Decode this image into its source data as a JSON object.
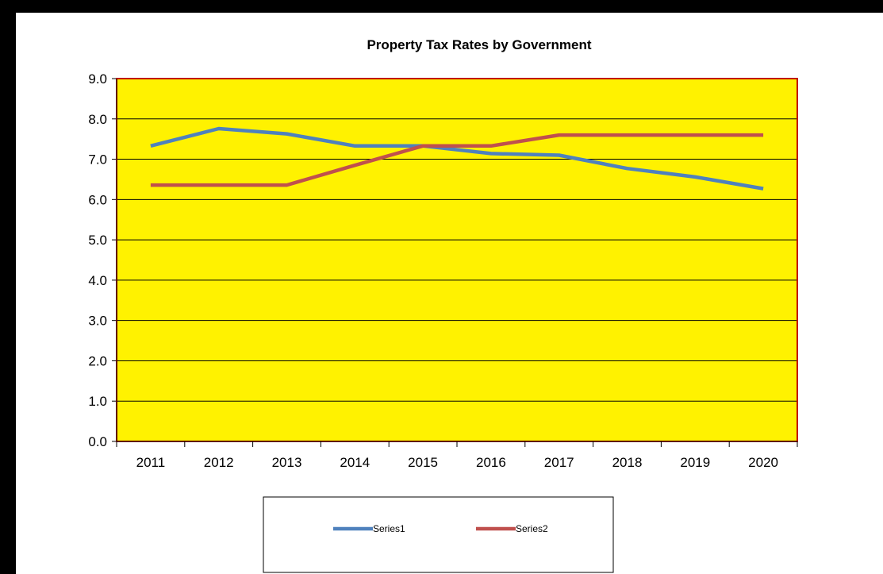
{
  "chart_data": {
    "type": "line",
    "title": "Property Tax Rates by Government",
    "xlabel": "",
    "ylabel": "",
    "categories": [
      "2011",
      "2012",
      "2013",
      "2014",
      "2015",
      "2016",
      "2017",
      "2018",
      "2019",
      "2020"
    ],
    "ylim": [
      0,
      9
    ],
    "yticks": [
      "0.0",
      "1.0",
      "2.0",
      "3.0",
      "4.0",
      "5.0",
      "6.0",
      "7.0",
      "8.0",
      "9.0"
    ],
    "grid": true,
    "legend_position": "bottom",
    "plot_background": "#FFF200",
    "plot_border_color": "#C00000",
    "series": [
      {
        "name": "Series1",
        "color": "#4F81BD",
        "values": [
          7.33,
          7.76,
          7.63,
          7.33,
          7.33,
          7.14,
          7.1,
          6.77,
          6.56,
          6.27
        ]
      },
      {
        "name": "Series2",
        "color": "#C0504D",
        "values": [
          6.36,
          6.36,
          6.36,
          6.85,
          7.33,
          7.33,
          7.6,
          7.6,
          7.6,
          7.6
        ]
      }
    ]
  }
}
